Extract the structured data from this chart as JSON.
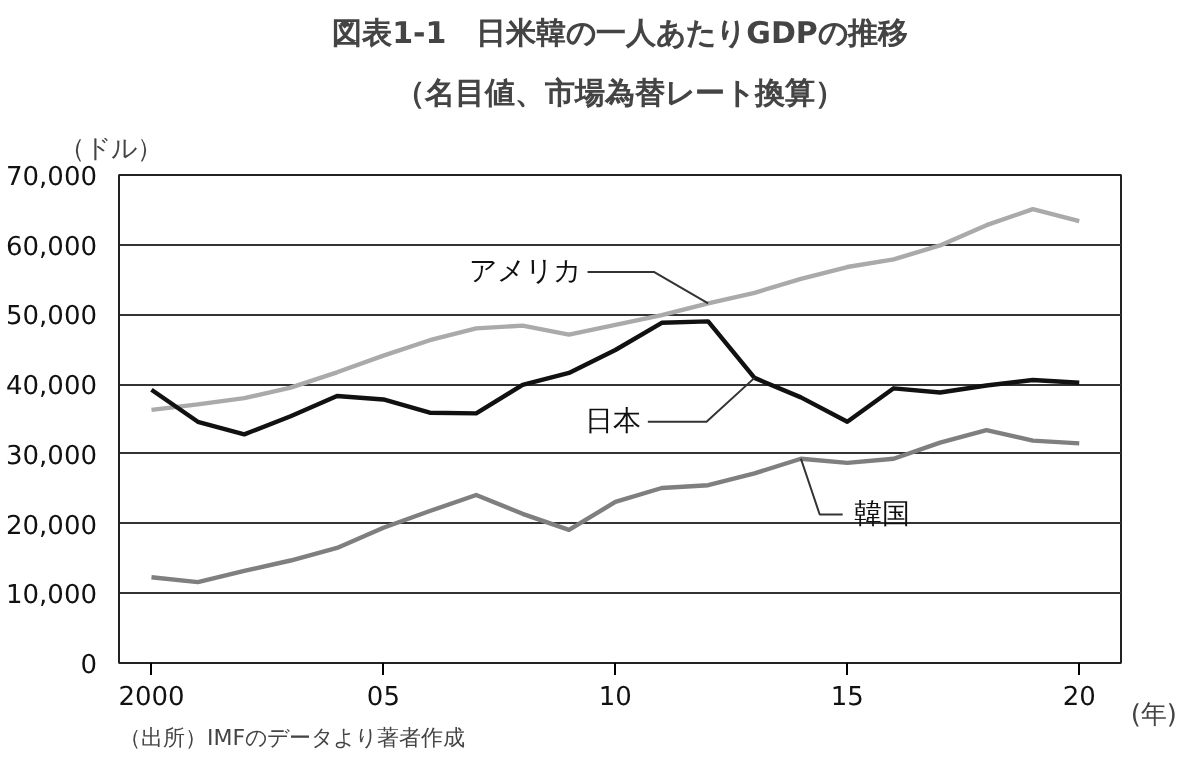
{
  "chart_data": {
    "type": "line",
    "title": "図表1-1　日米韓の一人あたりGDPの推移",
    "subtitle": "（名目値、市場為替レート換算）",
    "ylabel": "（ドル）",
    "x": [
      2000,
      2001,
      2002,
      2003,
      2004,
      2005,
      2006,
      2007,
      2008,
      2009,
      2010,
      2011,
      2012,
      2013,
      2014,
      2015,
      2016,
      2017,
      2018,
      2019,
      2020
    ],
    "series": [
      {
        "name": "アメリカ",
        "color": "#aaaaaa",
        "values": [
          36300,
          37100,
          38000,
          39500,
          41700,
          44100,
          46300,
          48000,
          48400,
          47100,
          48500,
          49900,
          51600,
          53100,
          55100,
          56800,
          57900,
          59900,
          62800,
          65100,
          63400
        ]
      },
      {
        "name": "日本",
        "color": "#111111",
        "values": [
          39200,
          34600,
          32800,
          35400,
          38300,
          37800,
          35900,
          35800,
          39900,
          41600,
          44900,
          48800,
          49000,
          40900,
          38100,
          34600,
          39400,
          38800,
          39800,
          40600,
          40200
        ]
      },
      {
        "name": "韓国",
        "color": "#7f7f7f",
        "values": [
          12300,
          11600,
          13200,
          14700,
          16500,
          19400,
          21800,
          24100,
          21400,
          19100,
          23100,
          25100,
          25500,
          27200,
          29300,
          28700,
          29300,
          31600,
          33400,
          31900,
          31500
        ]
      }
    ],
    "xlim": [
      1999.3,
      2020.9
    ],
    "xticks": [
      2000,
      {
        "value": 2005,
        "label": "05"
      },
      {
        "value": 2010,
        "label": "10"
      },
      {
        "value": 2015,
        "label": "15"
      },
      {
        "value": 2020,
        "label": "20"
      }
    ],
    "xlabel": "(年)",
    "ylim": [
      0,
      70000
    ],
    "yticks": [
      {
        "value": 0,
        "label": "0"
      },
      {
        "value": 10000,
        "label": "10,000"
      },
      {
        "value": 20000,
        "label": "20,000"
      },
      {
        "value": 30000,
        "label": "30,000"
      },
      {
        "value": 40000,
        "label": "40,000"
      },
      {
        "value": 50000,
        "label": "50,000"
      },
      {
        "value": 60000,
        "label": "60,000"
      },
      {
        "value": 70000,
        "label": "70,000"
      }
    ],
    "grid": "y",
    "legend": false,
    "marker": "none",
    "line_style": "solid",
    "annotations": [
      "（出所）IMFのデータより著者作成"
    ]
  }
}
